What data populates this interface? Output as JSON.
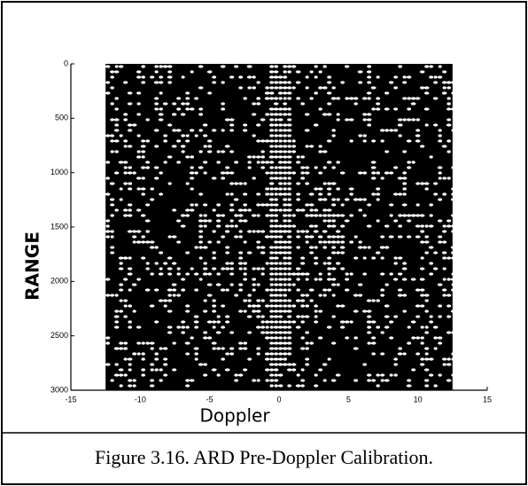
{
  "chart_data": {
    "type": "image",
    "caption": "Figure 3.16.  ARD Pre-Doppler Calibration.",
    "xlabel": "Doppler",
    "ylabel": "RANGE",
    "xlim": [
      -15,
      15
    ],
    "xticks": [
      -15,
      -10,
      -5,
      0,
      5,
      10,
      15
    ],
    "ylim": [
      0,
      3000
    ],
    "yticks": [
      0,
      500,
      1000,
      1500,
      2000,
      2500,
      3000
    ],
    "y_inverted": true,
    "image_x": [
      -12.5,
      12.5
    ],
    "image_y": [
      0,
      3000
    ],
    "color": "#000000"
  }
}
